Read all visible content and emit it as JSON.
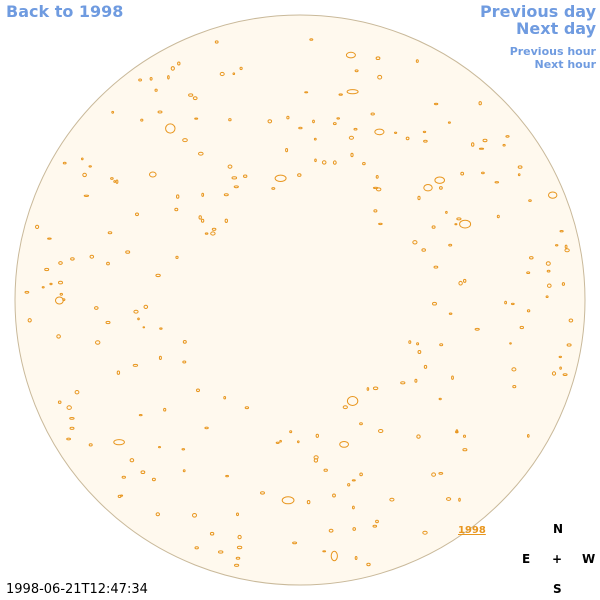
{
  "nav": {
    "back": "Back to 1998",
    "previous_day": "Previous day",
    "next_day": "Next day",
    "previous_hour": "Previous hour",
    "next_hour": "Next hour"
  },
  "image_link": "1998",
  "compass": {
    "n": "N",
    "e": "E",
    "center": "+",
    "w": "W",
    "s": "S"
  },
  "timestamp": "1998-06-21T12:47:34"
}
